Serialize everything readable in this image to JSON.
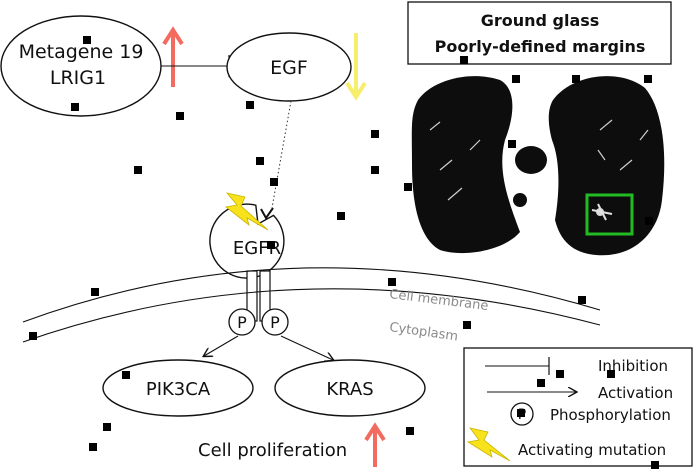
{
  "nodes": {
    "metagene": "Metagene 19",
    "lrig1": "LRIG1",
    "egf": "EGF",
    "egfr": "EGFR",
    "pik3ca": "PIK3CA",
    "kras": "KRAS"
  },
  "phospho_symbol": "P",
  "membrane": {
    "cell_membrane": "Cell membrane",
    "cytoplasm": "Cytoplasm"
  },
  "cell_proliferation": "Cell proliferation",
  "ct_panel": {
    "line1": "Ground glass",
    "line2": "Poorly-defined margins"
  },
  "legend": {
    "inhibition": "Inhibition",
    "activation": "Activation",
    "phosphorylation": "Phosphorylation",
    "activating_mutation": "Activating mutation"
  },
  "colors": {
    "up_arrow": "#f26b5e",
    "down_arrow": "#f7ee6b",
    "lightning": "#f7e21b",
    "roi_box": "#22bb22",
    "membrane_text": "#8a8a8a"
  }
}
